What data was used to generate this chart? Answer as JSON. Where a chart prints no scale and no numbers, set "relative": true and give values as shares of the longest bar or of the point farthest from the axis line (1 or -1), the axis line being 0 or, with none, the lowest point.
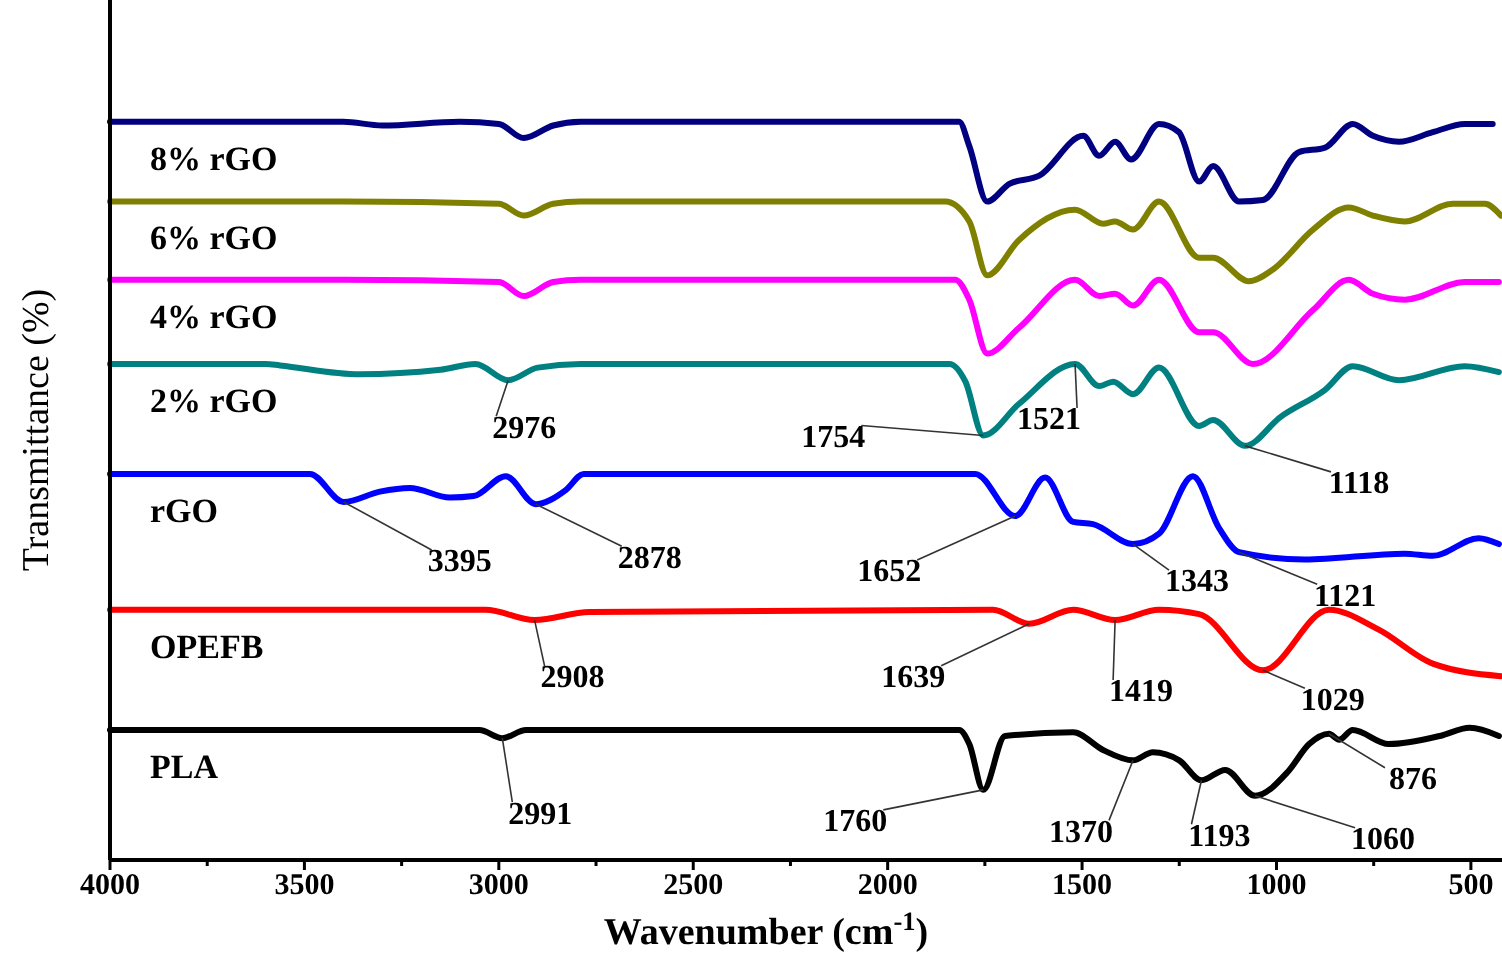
{
  "chart_data": {
    "type": "line",
    "relative": true,
    "xlabel": "Wavenumber (cm$^{-1}$)",
    "ylabel": "Transmittance (%)",
    "xlim": [
      4000,
      420
    ],
    "xticks": [
      4000,
      {
        "value": 3750,
        "label": null
      },
      3500,
      {
        "value": 3250,
        "label": null
      },
      3000,
      {
        "value": 2750,
        "label": null
      },
      2500,
      {
        "value": 2250,
        "label": null
      },
      2000,
      {
        "value": 1750,
        "label": null
      },
      1500,
      {
        "value": 1250,
        "label": null
      },
      1000,
      {
        "value": 750,
        "label": null
      },
      500
    ],
    "grid": false,
    "marker": "none",
    "line_style": "solid",
    "series": [
      {
        "name": "8% rGO",
        "color": "#000080",
        "x": [
          4000,
          3400,
          3300,
          3100,
          3000,
          2936,
          2860,
          2790,
          1816,
          1790,
          1744,
          1687,
          1610,
          1497,
          1456,
          1415,
          1374,
          1302,
          1251,
          1199,
          1163,
          1096,
          1035,
          942,
          875,
          804,
          752,
          685,
          598,
          516,
          444
        ],
        "values": [
          1,
          1,
          0.995,
          1,
          0.997,
          0.978,
          0.995,
          1,
          1,
          0.967,
          0.892,
          0.916,
          0.927,
          0.981,
          0.954,
          0.973,
          0.949,
          0.997,
          0.986,
          0.919,
          0.94,
          0.892,
          0.894,
          0.959,
          0.965,
          0.997,
          0.981,
          0.973,
          0.986,
          0.997,
          0.997
        ]
      },
      {
        "name": "6% rGO",
        "color": "#808000",
        "x": [
          4000,
          3400,
          3000,
          2936,
          2860,
          2790,
          1852,
          1790,
          1744,
          1662,
          1518,
          1446,
          1415,
          1369,
          1302,
          1199,
          1163,
          1071,
          1009,
          906,
          814,
          752,
          670,
          547,
          464,
          423
        ],
        "values": [
          0.892,
          0.892,
          0.889,
          0.873,
          0.889,
          0.892,
          0.892,
          0.865,
          0.792,
          0.84,
          0.881,
          0.862,
          0.865,
          0.854,
          0.892,
          0.816,
          0.816,
          0.784,
          0.8,
          0.854,
          0.884,
          0.873,
          0.865,
          0.889,
          0.889,
          0.873
        ]
      },
      {
        "name": "4% rGO",
        "color": "#ff00ff",
        "x": [
          4000,
          3400,
          3000,
          2936,
          2860,
          2790,
          1826,
          1790,
          1744,
          1662,
          1518,
          1456,
          1415,
          1369,
          1302,
          1199,
          1163,
          1060,
          906,
          814,
          752,
          670,
          516,
          428
        ],
        "values": [
          0.786,
          0.786,
          0.783,
          0.764,
          0.783,
          0.786,
          0.786,
          0.759,
          0.686,
          0.721,
          0.786,
          0.764,
          0.767,
          0.751,
          0.786,
          0.715,
          0.715,
          0.672,
          0.745,
          0.786,
          0.767,
          0.759,
          0.783,
          0.783
        ]
      },
      {
        "name": "2% rGO",
        "color": "#008080",
        "x": [
          4000,
          3600,
          3563,
          3358,
          3150,
          3060,
          2976,
          2900,
          2790,
          1841,
          1800,
          1754,
          1662,
          1518,
          1456,
          1420,
          1369,
          1302,
          1199,
          1163,
          1081,
          990,
          875,
          804,
          685,
          516,
          428
        ],
        "values": [
          0.672,
          0.672,
          0.67,
          0.658,
          0.664,
          0.672,
          0.65,
          0.667,
          0.672,
          0.672,
          0.648,
          0.575,
          0.618,
          0.672,
          0.642,
          0.648,
          0.631,
          0.667,
          0.588,
          0.596,
          0.561,
          0.6,
          0.637,
          0.669,
          0.65,
          0.669,
          0.661
        ]
      },
      {
        "name": "rGO",
        "color": "#0000ff",
        "x": [
          4000,
          3486,
          3399,
          3306,
          3229,
          3126,
          3065,
          2982,
          2905,
          2828,
          2782,
          1775,
          1672,
          1595,
          1523,
          1472,
          1369,
          1302,
          1215,
          1148,
          1096,
          927,
          670,
          598,
          480,
          428
        ],
        "values": [
          0.523,
          0.523,
          0.485,
          0.499,
          0.504,
          0.491,
          0.493,
          0.52,
          0.482,
          0.501,
          0.523,
          0.523,
          0.466,
          0.518,
          0.458,
          0.455,
          0.428,
          0.442,
          0.52,
          0.45,
          0.417,
          0.407,
          0.415,
          0.412,
          0.436,
          0.428
        ]
      },
      {
        "name": "OPEFB",
        "color": "#ff0000",
        "x": [
          4000,
          3034,
          2908,
          2767,
          1729,
          1636,
          1523,
          1415,
          1302,
          1199,
          1035,
          865,
          737,
          598,
          423
        ],
        "values": [
          0.339,
          0.339,
          0.325,
          0.336,
          0.339,
          0.32,
          0.339,
          0.325,
          0.339,
          0.333,
          0.257,
          0.339,
          0.312,
          0.266,
          0.249
        ]
      },
      {
        "name": "PLA",
        "color": "#000000",
        "x": [
          4000,
          3050,
          2991,
          2930,
          1816,
          1790,
          1754,
          1698,
          1523,
          1446,
          1369,
          1318,
          1250,
          1193,
          1132,
          1055,
          970,
          916,
          865,
          839,
          804,
          711,
          580,
          503,
          428
        ],
        "values": [
          0.176,
          0.176,
          0.165,
          0.176,
          0.176,
          0.157,
          0.095,
          0.168,
          0.173,
          0.149,
          0.135,
          0.146,
          0.135,
          0.108,
          0.122,
          0.087,
          0.12,
          0.157,
          0.171,
          0.163,
          0.176,
          0.157,
          0.168,
          0.179,
          0.168
        ]
      }
    ],
    "annotations": [
      {
        "text": "2976",
        "x": 2976,
        "y": 0.65
      },
      {
        "text": "1754",
        "x": 1754,
        "y": 0.575
      },
      {
        "text": "1521",
        "x": 1518,
        "y": 0.672
      },
      {
        "text": "1118",
        "x": 1081,
        "y": 0.561
      },
      {
        "text": "3395",
        "x": 3399,
        "y": 0.485
      },
      {
        "text": "2878",
        "x": 2905,
        "y": 0.482
      },
      {
        "text": "1652",
        "x": 1672,
        "y": 0.466
      },
      {
        "text": "1343",
        "x": 1369,
        "y": 0.428
      },
      {
        "text": "1121",
        "x": 1096,
        "y": 0.417
      },
      {
        "text": "2908",
        "x": 2908,
        "y": 0.325
      },
      {
        "text": "1639",
        "x": 1636,
        "y": 0.32
      },
      {
        "text": "1419",
        "x": 1415,
        "y": 0.325
      },
      {
        "text": "1029",
        "x": 1035,
        "y": 0.257
      },
      {
        "text": "2991",
        "x": 2991,
        "y": 0.165
      },
      {
        "text": "1760",
        "x": 1754,
        "y": 0.095
      },
      {
        "text": "1370",
        "x": 1369,
        "y": 0.135
      },
      {
        "text": "1193",
        "x": 1193,
        "y": 0.108
      },
      {
        "text": "1060",
        "x": 1055,
        "y": 0.087
      },
      {
        "text": "876",
        "x": 865,
        "y": 0.171
      }
    ]
  }
}
